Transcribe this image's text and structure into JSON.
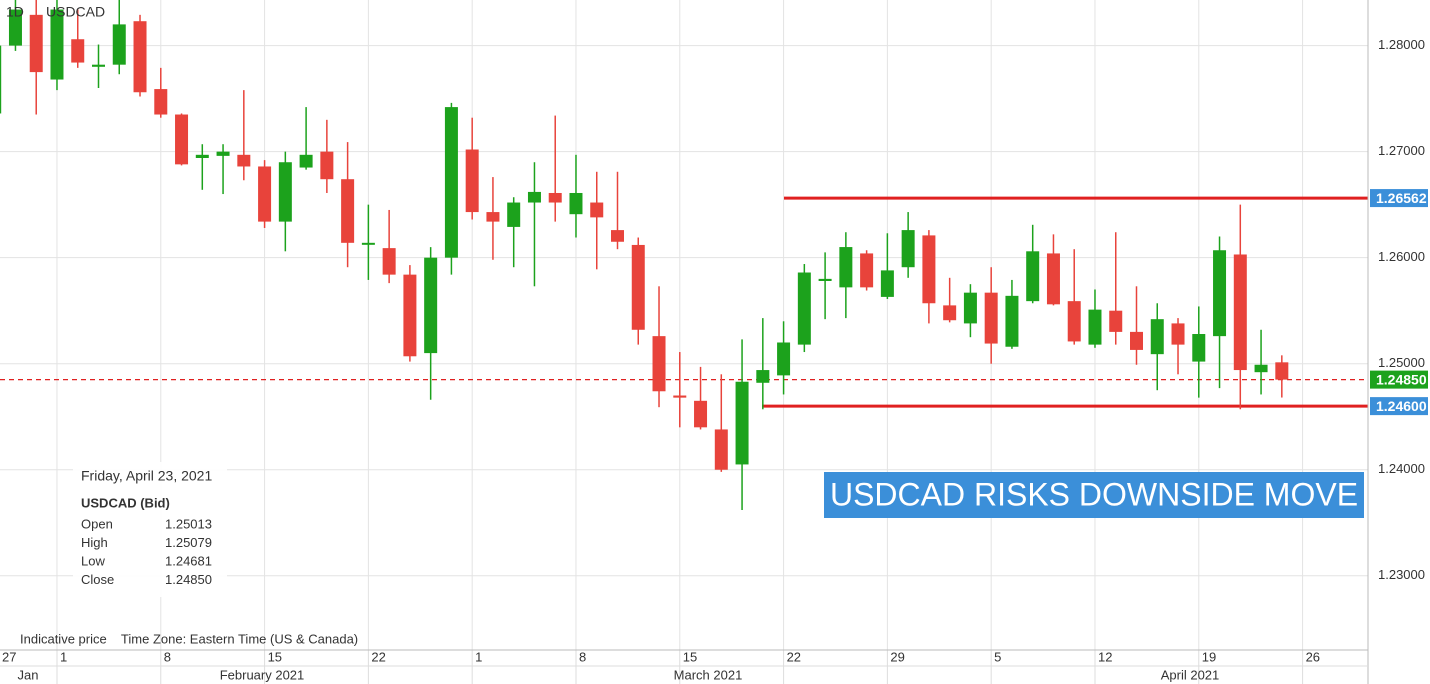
{
  "chart_data": {
    "type": "candlestick",
    "timeframe": "1D",
    "title": "USDCAD",
    "categories": [
      "27",
      null,
      null,
      "1",
      null,
      null,
      null,
      null,
      "8",
      null,
      null,
      null,
      null,
      "15",
      null,
      null,
      null,
      null,
      "22",
      null,
      null,
      null,
      null,
      "1",
      null,
      null,
      null,
      null,
      "8",
      null,
      null,
      null,
      null,
      "15",
      null,
      null,
      null,
      null,
      "22",
      null,
      null,
      null,
      null,
      "29",
      null,
      null,
      null,
      null,
      "5",
      null,
      null,
      null,
      null,
      "12",
      null,
      null,
      null,
      null,
      "19",
      null,
      null,
      null,
      null,
      "26"
    ],
    "month_labels": [
      "Jan",
      "February 2021",
      "March 2021",
      "April 2021"
    ],
    "open": [
      1.2736,
      1.28,
      1.2829,
      1.2768,
      1.2806,
      1.278,
      1.2782,
      1.2823,
      1.2759,
      1.2735,
      1.2694,
      1.2696,
      1.2697,
      1.2686,
      1.2634,
      1.2685,
      1.27,
      1.2674,
      1.2613,
      1.2609,
      1.2584,
      1.251,
      1.26,
      1.2702,
      1.2643,
      1.2629,
      1.2652,
      1.2661,
      1.2641,
      1.2652,
      1.2626,
      1.2612,
      1.2526,
      1.247,
      1.2465,
      1.2438,
      1.2405,
      1.2482,
      1.2489,
      1.2518,
      1.2578,
      1.2572,
      1.2604,
      1.2563,
      1.2591,
      1.2621,
      1.2555,
      1.2538,
      1.2567,
      1.2516,
      1.2559,
      1.2604,
      1.2559,
      1.2518,
      1.255,
      1.253,
      1.2509,
      1.2538,
      1.2502,
      1.2526,
      1.2603,
      1.2492,
      1.25013,
      null
    ],
    "high": [
      1.2815,
      1.2843,
      1.2843,
      1.285,
      1.2834,
      1.2801,
      1.2843,
      1.2829,
      1.2779,
      1.2736,
      1.2707,
      1.2707,
      1.2758,
      1.2692,
      1.27,
      1.2742,
      1.273,
      1.2709,
      1.265,
      1.2645,
      1.2593,
      1.261,
      1.2746,
      1.2732,
      1.2676,
      1.2657,
      1.269,
      1.2734,
      1.2697,
      1.2681,
      1.2681,
      1.2619,
      1.2573,
      1.2511,
      1.2497,
      1.249,
      1.2523,
      1.2543,
      1.254,
      1.2594,
      1.2605,
      1.2624,
      1.2607,
      1.2623,
      1.2643,
      1.2626,
      1.2581,
      1.2575,
      1.2591,
      1.2579,
      1.2631,
      1.2622,
      1.2608,
      1.257,
      1.2624,
      1.2573,
      1.2557,
      1.2543,
      1.2554,
      1.262,
      1.265,
      1.2532,
      1.25079,
      null
    ],
    "low": [
      1.273,
      1.2795,
      1.2735,
      1.2758,
      1.2779,
      1.276,
      1.2773,
      1.2752,
      1.2732,
      1.2687,
      1.2664,
      1.266,
      1.2673,
      1.2628,
      1.2606,
      1.2683,
      1.2661,
      1.2591,
      1.2579,
      1.2576,
      1.2502,
      1.2466,
      1.2584,
      1.2636,
      1.2598,
      1.2591,
      1.2573,
      1.2634,
      1.2619,
      1.2589,
      1.2608,
      1.2518,
      1.2459,
      1.244,
      1.2438,
      1.2398,
      1.2362,
      1.2457,
      1.2471,
      1.2511,
      1.2542,
      1.2543,
      1.2569,
      1.2561,
      1.2581,
      1.2538,
      1.2539,
      1.2525,
      1.25,
      1.2514,
      1.2557,
      1.2555,
      1.2518,
      1.2515,
      1.2518,
      1.2499,
      1.2475,
      1.249,
      1.2468,
      1.2477,
      1.2457,
      1.2471,
      1.24681,
      null
    ],
    "close": [
      1.28,
      1.2834,
      1.2775,
      1.2834,
      1.2784,
      1.2782,
      1.282,
      1.2756,
      1.2735,
      1.2688,
      1.2697,
      1.27,
      1.2686,
      1.2634,
      1.269,
      1.2697,
      1.2674,
      1.2614,
      1.2614,
      1.2584,
      1.2507,
      1.26,
      1.2742,
      1.2643,
      1.2634,
      1.2652,
      1.2662,
      1.2652,
      1.2661,
      1.2638,
      1.2615,
      1.2532,
      1.2474,
      1.2468,
      1.244,
      1.24,
      1.2483,
      1.2494,
      1.252,
      1.2586,
      1.258,
      1.261,
      1.2572,
      1.2588,
      1.2626,
      1.2557,
      1.2541,
      1.2567,
      1.2519,
      1.2564,
      1.2606,
      1.2556,
      1.2521,
      1.2551,
      1.253,
      1.2513,
      1.2542,
      1.2518,
      1.2528,
      1.2607,
      1.2494,
      1.2499,
      1.2485,
      null
    ],
    "up_color": "#1ca21c",
    "down_color": "#e8433b",
    "ylim": [
      1.223,
      1.2843
    ],
    "yticks": [
      {
        "value": 1.23,
        "label": "1.23000"
      },
      {
        "value": 1.24,
        "label": "1.24000"
      },
      {
        "value": 1.25,
        "label": "1.25000"
      },
      {
        "value": 1.26,
        "label": "1.26000"
      },
      {
        "value": 1.27,
        "label": "1.27000"
      },
      {
        "value": 1.28,
        "label": "1.28000"
      }
    ],
    "grid": true,
    "levels": [
      {
        "value": 1.26562,
        "label": "1.26562",
        "color": "#e02020",
        "tag_color": "#3b8fd9"
      },
      {
        "value": 1.246,
        "label": "1.24600",
        "color": "#e02020",
        "tag_color": "#3b8fd9"
      }
    ],
    "current": {
      "value": 1.2485,
      "label": "1.24850",
      "color": "#e02020",
      "tag_color": "#1ca21c"
    },
    "annotation": "USDCAD RISKS DOWNSIDE MOVE",
    "annotation_color": "#3b8fd9",
    "footer": "Indicative price    Time Zone: Eastern Time (US & Canada)",
    "info": {
      "date": "Friday, April 23, 2021",
      "symbol": "USDCAD (Bid)",
      "rows": [
        [
          "Open",
          "1.25013"
        ],
        [
          "High",
          "1.25079"
        ],
        [
          "Low",
          "1.24681"
        ],
        [
          "Close",
          "1.24850"
        ]
      ]
    }
  }
}
